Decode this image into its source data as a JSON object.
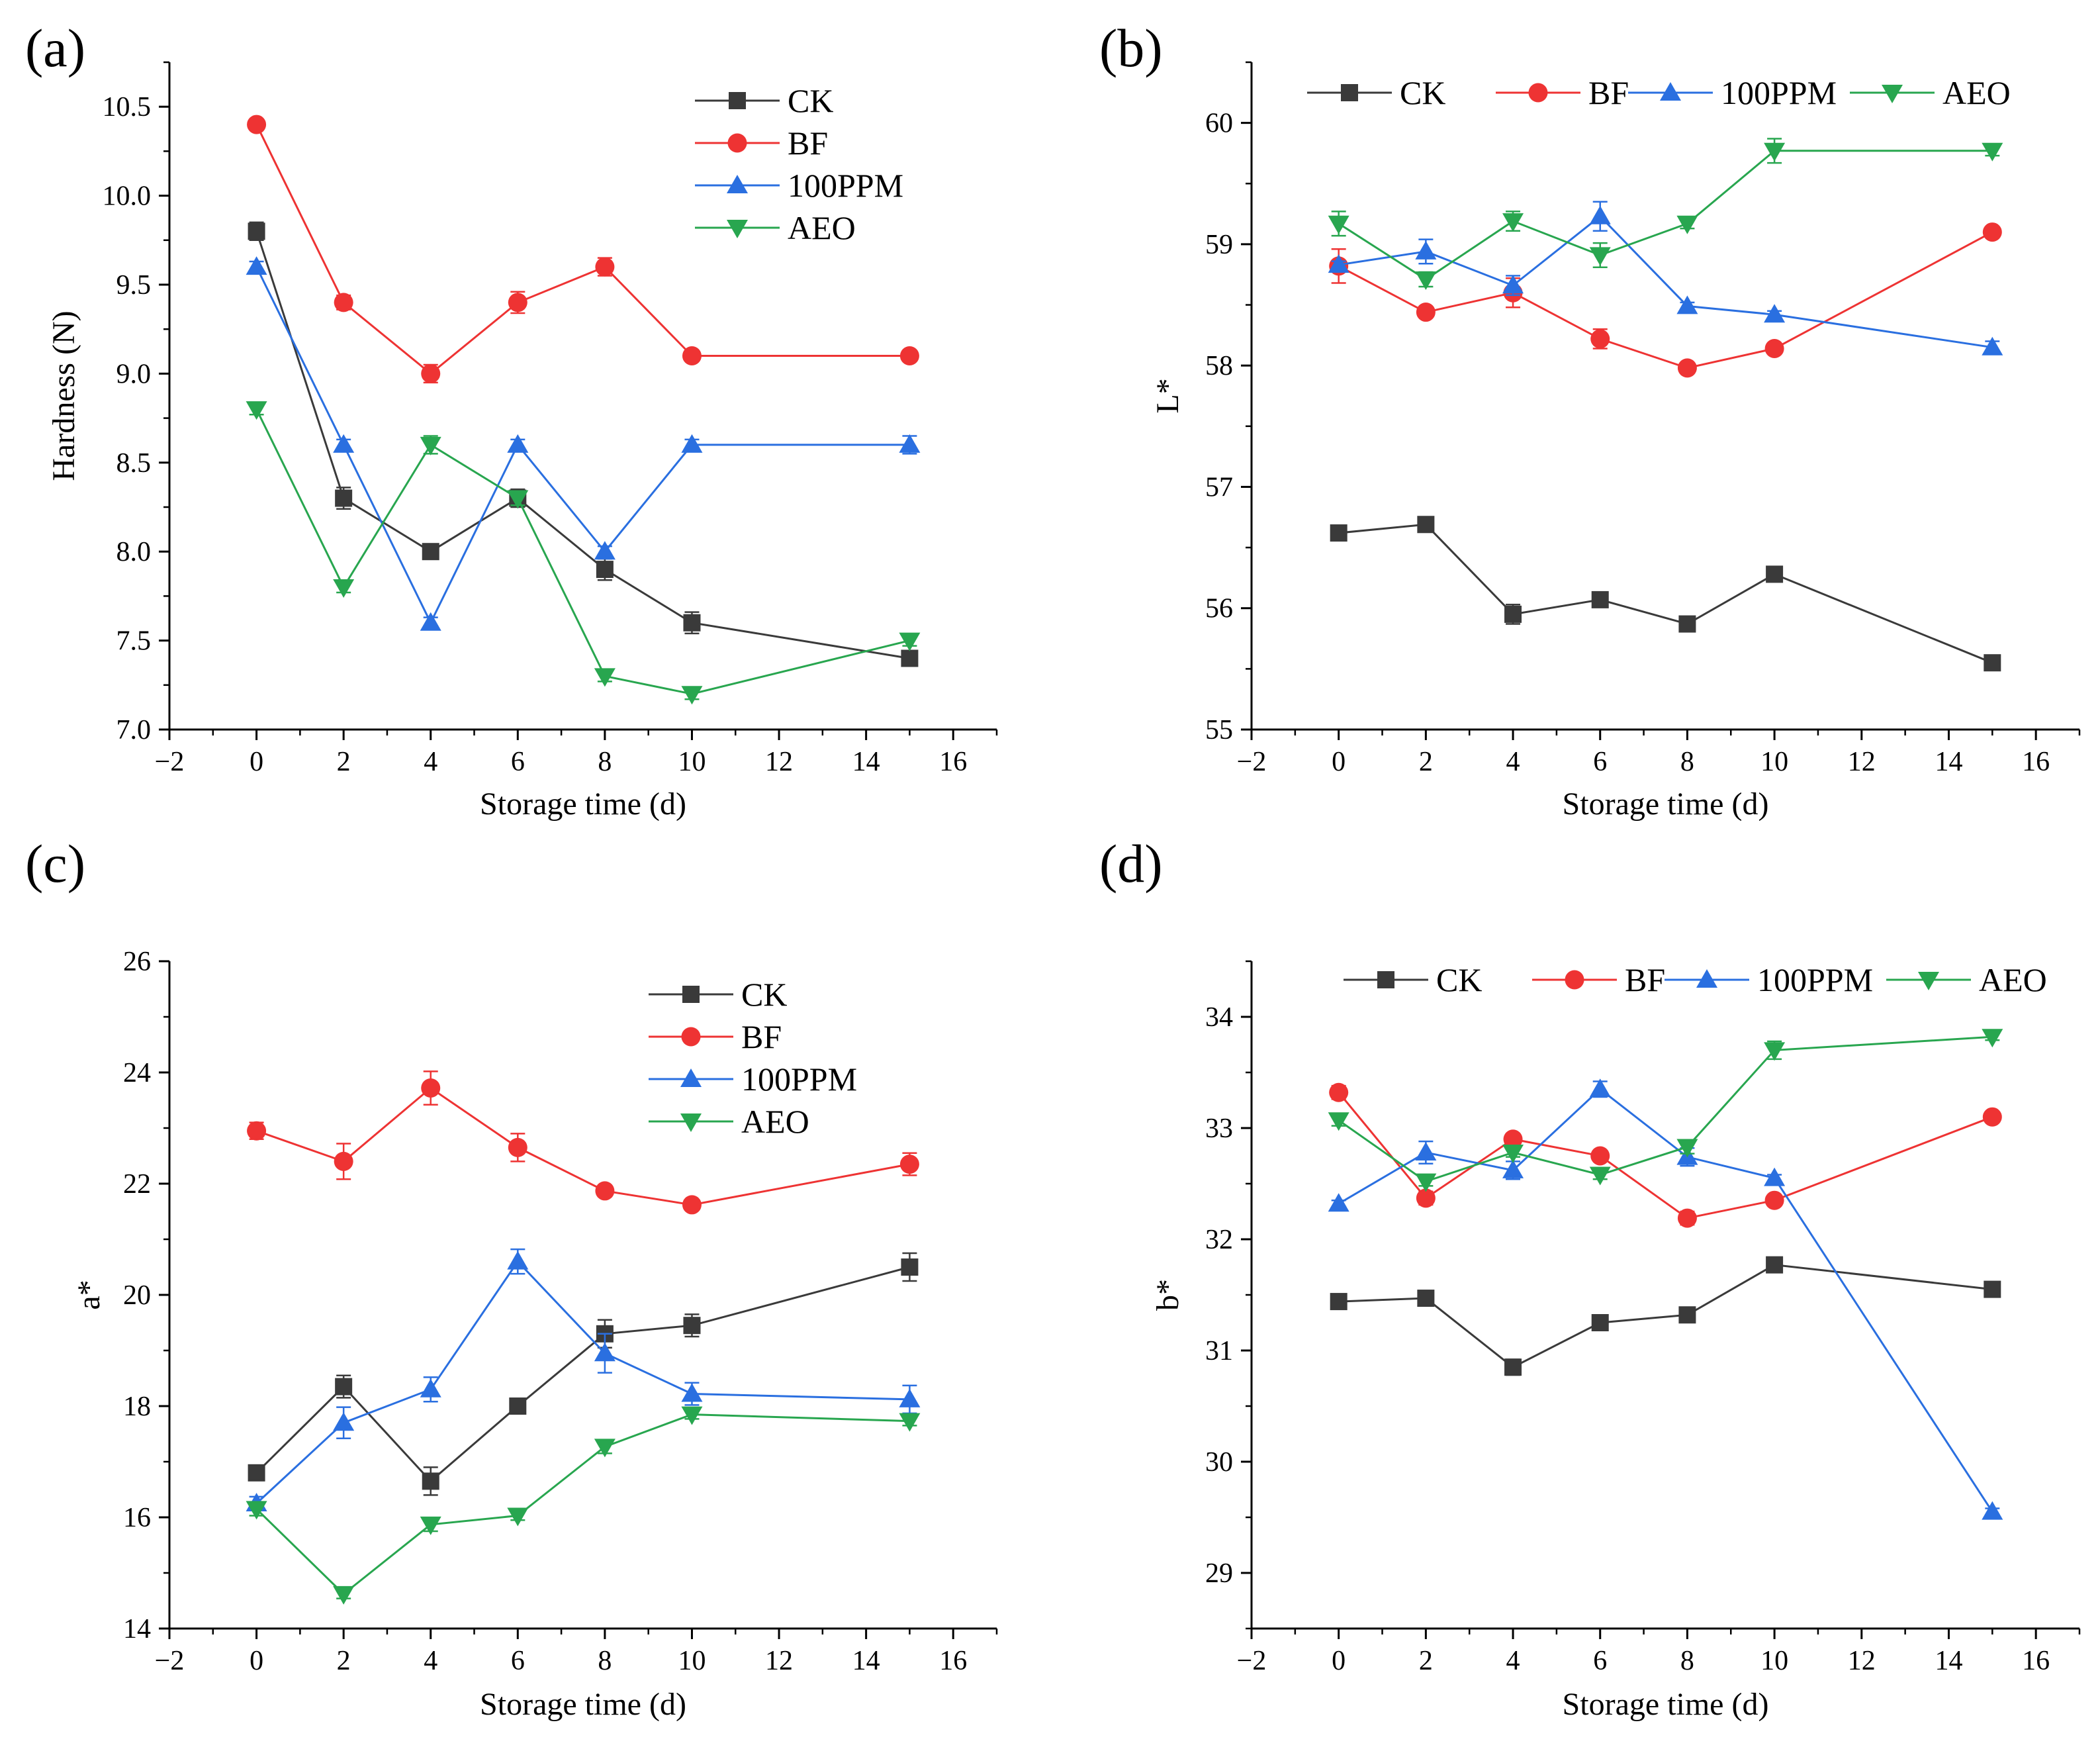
{
  "colors": {
    "CK": "#3a3a3a",
    "BF": "#ee3333",
    "100PPM": "#2a6fe0",
    "AEO": "#28a64f"
  },
  "chart_data": [
    {
      "panel": "(a)",
      "type": "line",
      "title": "",
      "xlabel": "Storage time (d)",
      "ylabel": "Hardness (N)",
      "xlim": [
        -2,
        17
      ],
      "ylim": [
        7.0,
        10.75
      ],
      "xticks": [
        -2,
        0,
        2,
        4,
        6,
        8,
        10,
        12,
        14,
        16
      ],
      "xtick_labels": [
        "−2",
        "0",
        "2",
        "4",
        "6",
        "8",
        "10",
        "12",
        "14",
        "16"
      ],
      "yticks": [
        7.0,
        7.5,
        8.0,
        8.5,
        9.0,
        9.5,
        10.0,
        10.5
      ],
      "ytick_labels": [
        "7.0",
        "7.5",
        "8.0",
        "8.5",
        "9.0",
        "9.5",
        "10.0",
        "10.5"
      ],
      "legend_position": "top-right",
      "legend_columns": 1,
      "x": [
        0,
        2,
        4,
        6,
        8,
        10,
        15
      ],
      "series": [
        {
          "name": "CK",
          "marker": "square",
          "values": [
            9.8,
            8.3,
            8.0,
            8.3,
            7.9,
            7.6,
            7.4
          ],
          "errors": [
            0.05,
            0.06,
            0.04,
            0.05,
            0.06,
            0.06,
            0.04
          ]
        },
        {
          "name": "BF",
          "marker": "circle",
          "values": [
            10.4,
            9.4,
            9.0,
            9.4,
            9.6,
            9.1,
            9.1
          ],
          "errors": [
            0.03,
            0.04,
            0.05,
            0.06,
            0.05,
            0.03,
            0.03
          ]
        },
        {
          "name": "100PPM",
          "marker": "triangle-up",
          "values": [
            9.6,
            8.6,
            7.6,
            8.6,
            8.0,
            8.6,
            8.6
          ],
          "errors": [
            0.03,
            0.03,
            0.03,
            0.03,
            0.03,
            0.03,
            0.05
          ]
        },
        {
          "name": "AEO",
          "marker": "triangle-down",
          "values": [
            8.8,
            7.8,
            8.6,
            8.3,
            7.3,
            7.2,
            7.5
          ],
          "errors": [
            0.03,
            0.03,
            0.05,
            0.04,
            0.03,
            0.03,
            0.03
          ]
        }
      ]
    },
    {
      "panel": "(b)",
      "type": "line",
      "title": "",
      "xlabel": "Storage time (d)",
      "ylabel": "L*",
      "xlim": [
        -2,
        17
      ],
      "ylim": [
        55,
        60.5
      ],
      "xticks": [
        -2,
        0,
        2,
        4,
        6,
        8,
        10,
        12,
        14,
        16
      ],
      "xtick_labels": [
        "−2",
        "0",
        "2",
        "4",
        "6",
        "8",
        "10",
        "12",
        "14",
        "16"
      ],
      "yticks": [
        55,
        56,
        57,
        58,
        59,
        60
      ],
      "ytick_labels": [
        "55",
        "56",
        "57",
        "58",
        "59",
        "60"
      ],
      "legend_position": "top",
      "legend_columns": 4,
      "x": [
        0,
        2,
        4,
        6,
        8,
        10,
        15
      ],
      "series": [
        {
          "name": "CK",
          "marker": "square",
          "values": [
            56.62,
            56.69,
            55.95,
            56.07,
            55.87,
            56.28,
            55.55
          ],
          "errors": [
            0.03,
            0.03,
            0.08,
            0.04,
            0.03,
            0.03,
            0.05
          ]
        },
        {
          "name": "BF",
          "marker": "circle",
          "values": [
            58.82,
            58.44,
            58.6,
            58.22,
            57.98,
            58.14,
            59.1
          ],
          "errors": [
            0.14,
            0.03,
            0.12,
            0.08,
            0.03,
            0.03,
            0.03
          ]
        },
        {
          "name": "100PPM",
          "marker": "triangle-up",
          "values": [
            58.83,
            58.94,
            58.66,
            59.23,
            58.49,
            58.42,
            58.15
          ],
          "errors": [
            0.03,
            0.1,
            0.08,
            0.12,
            0.03,
            0.03,
            0.05
          ]
        },
        {
          "name": "AEO",
          "marker": "triangle-down",
          "values": [
            59.17,
            58.71,
            59.19,
            58.91,
            59.17,
            59.77,
            59.77
          ],
          "errors": [
            0.1,
            0.06,
            0.08,
            0.1,
            0.04,
            0.1,
            0.04
          ]
        }
      ]
    },
    {
      "panel": "(c)",
      "type": "line",
      "title": "",
      "xlabel": "Storage time (d)",
      "ylabel": "a*",
      "xlim": [
        -2,
        17
      ],
      "ylim": [
        14,
        26
      ],
      "xticks": [
        -2,
        0,
        2,
        4,
        6,
        8,
        10,
        12,
        14,
        16
      ],
      "xtick_labels": [
        "−2",
        "0",
        "2",
        "4",
        "6",
        "8",
        "10",
        "12",
        "14",
        "16"
      ],
      "yticks": [
        14,
        16,
        18,
        20,
        22,
        24,
        26
      ],
      "ytick_labels": [
        "14",
        "16",
        "18",
        "20",
        "22",
        "24",
        "26"
      ],
      "legend_position": "top-center",
      "legend_columns": 1,
      "x": [
        0,
        2,
        4,
        6,
        8,
        10,
        15
      ],
      "series": [
        {
          "name": "CK",
          "marker": "square",
          "values": [
            16.8,
            18.35,
            16.65,
            18.0,
            19.3,
            19.45,
            20.5
          ],
          "errors": [
            0.1,
            0.2,
            0.25,
            0.1,
            0.25,
            0.2,
            0.25
          ]
        },
        {
          "name": "BF",
          "marker": "circle",
          "values": [
            22.95,
            22.4,
            23.72,
            22.65,
            21.87,
            21.62,
            22.35
          ],
          "errors": [
            0.15,
            0.32,
            0.3,
            0.25,
            0.1,
            0.08,
            0.2
          ]
        },
        {
          "name": "100PPM",
          "marker": "triangle-up",
          "values": [
            16.25,
            17.7,
            18.3,
            20.6,
            18.95,
            18.22,
            18.12
          ],
          "errors": [
            0.12,
            0.28,
            0.22,
            0.22,
            0.35,
            0.2,
            0.25
          ]
        },
        {
          "name": "AEO",
          "marker": "triangle-down",
          "values": [
            16.15,
            14.62,
            15.87,
            16.03,
            17.27,
            17.85,
            17.73
          ],
          "errors": [
            0.12,
            0.08,
            0.12,
            0.08,
            0.12,
            0.08,
            0.08
          ]
        }
      ]
    },
    {
      "panel": "(d)",
      "type": "line",
      "title": "",
      "xlabel": "Storage time (d)",
      "ylabel": "b*",
      "xlim": [
        -2,
        17
      ],
      "ylim": [
        28.5,
        34.5
      ],
      "xticks": [
        -2,
        0,
        2,
        4,
        6,
        8,
        10,
        12,
        14,
        16
      ],
      "xtick_labels": [
        "−2",
        "0",
        "2",
        "4",
        "6",
        "8",
        "10",
        "12",
        "14",
        "16"
      ],
      "yticks": [
        29,
        30,
        31,
        32,
        33,
        34
      ],
      "ytick_labels": [
        "29",
        "30",
        "31",
        "32",
        "33",
        "34"
      ],
      "legend_position": "top",
      "legend_columns": 4,
      "x": [
        0,
        2,
        4,
        6,
        8,
        10,
        15
      ],
      "series": [
        {
          "name": "CK",
          "marker": "square",
          "values": [
            31.44,
            31.47,
            30.85,
            31.25,
            31.32,
            31.77,
            31.55
          ],
          "errors": [
            0.03,
            0.03,
            0.07,
            0.03,
            0.03,
            0.03,
            0.06
          ]
        },
        {
          "name": "BF",
          "marker": "circle",
          "values": [
            33.32,
            32.37,
            32.9,
            32.75,
            32.19,
            32.35,
            33.1
          ],
          "errors": [
            0.06,
            0.06,
            0.03,
            0.04,
            0.06,
            0.03,
            0.03
          ]
        },
        {
          "name": "100PPM",
          "marker": "triangle-up",
          "values": [
            32.32,
            32.78,
            32.62,
            33.35,
            32.74,
            32.55,
            29.55
          ],
          "errors": [
            0.03,
            0.1,
            0.08,
            0.07,
            0.08,
            0.03,
            0.03
          ]
        },
        {
          "name": "AEO",
          "marker": "triangle-down",
          "values": [
            33.07,
            32.52,
            32.78,
            32.58,
            32.83,
            33.7,
            33.82
          ],
          "errors": [
            0.05,
            0.04,
            0.04,
            0.04,
            0.06,
            0.08,
            0.03
          ]
        }
      ]
    }
  ]
}
